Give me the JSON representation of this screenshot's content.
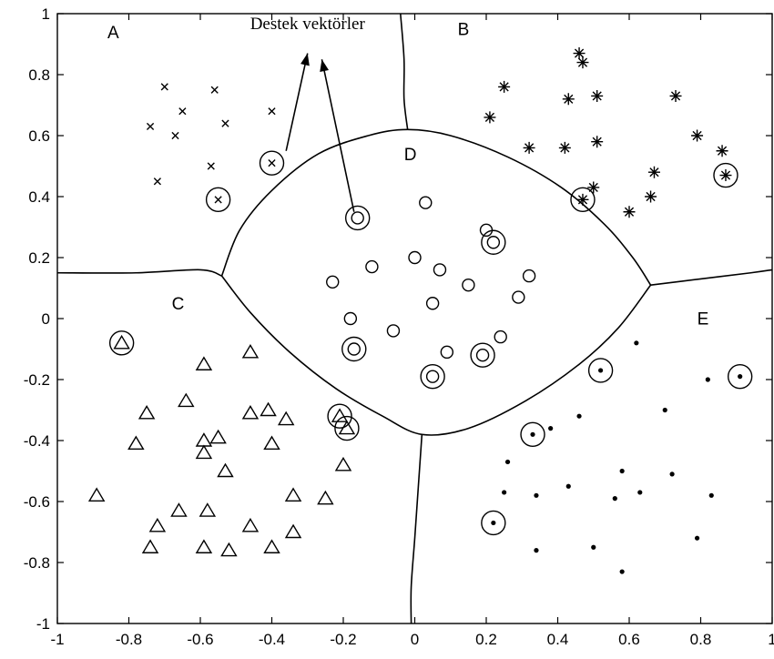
{
  "chart_data": {
    "type": "scatter",
    "xlim": [
      -1,
      1
    ],
    "ylim": [
      -1,
      1
    ],
    "xticks": [
      -1,
      -0.8,
      -0.6,
      -0.4,
      -0.2,
      0,
      0.2,
      0.4,
      0.6,
      0.8,
      1
    ],
    "yticks": [
      -1,
      -0.8,
      -0.6,
      -0.4,
      -0.2,
      0,
      0.2,
      0.4,
      0.6,
      0.8,
      1
    ],
    "xtick_labels": [
      "-1",
      "-0.8",
      "-0.6",
      "-0.4",
      "-0.2",
      "0",
      "0.2",
      "0.4",
      "0.6",
      "0.8",
      "1"
    ],
    "ytick_labels": [
      "-1",
      "-0.8",
      "-0.6",
      "-0.4",
      "-0.2",
      "0",
      "0.2",
      "0.4",
      "0.6",
      "0.8",
      "1"
    ],
    "grid": false,
    "annotation": {
      "text": "Destek vektörler",
      "position": [
        -0.3,
        0.95
      ],
      "arrows": [
        {
          "from": [
            -0.36,
            0.55
          ],
          "to": [
            -0.3,
            0.87
          ]
        },
        {
          "from": [
            -0.17,
            0.35
          ],
          "to": [
            -0.26,
            0.85
          ]
        }
      ]
    },
    "regions": [
      {
        "label": "A",
        "label_position": [
          -0.86,
          0.92
        ]
      },
      {
        "label": "B",
        "label_position": [
          0.12,
          0.93
        ]
      },
      {
        "label": "C",
        "label_position": [
          -0.68,
          0.03
        ]
      },
      {
        "label": "D",
        "label_position": [
          -0.03,
          0.52
        ]
      },
      {
        "label": "E",
        "label_position": [
          0.79,
          -0.02
        ]
      }
    ],
    "series": [
      {
        "marker": "x",
        "points": [
          [
            -0.7,
            0.76
          ],
          [
            -0.56,
            0.75
          ],
          [
            -0.74,
            0.63
          ],
          [
            -0.65,
            0.68
          ],
          [
            -0.67,
            0.6
          ],
          [
            -0.53,
            0.64
          ],
          [
            -0.4,
            0.68
          ],
          [
            -0.72,
            0.45
          ],
          [
            -0.57,
            0.5
          ],
          [
            -0.4,
            0.51
          ],
          [
            -0.55,
            0.39
          ]
        ],
        "support_vectors": [
          [
            -0.4,
            0.51
          ],
          [
            -0.55,
            0.39
          ]
        ]
      },
      {
        "marker": "star",
        "points": [
          [
            0.46,
            0.87
          ],
          [
            0.47,
            0.84
          ],
          [
            0.25,
            0.76
          ],
          [
            0.43,
            0.72
          ],
          [
            0.51,
            0.73
          ],
          [
            0.73,
            0.73
          ],
          [
            0.21,
            0.66
          ],
          [
            0.32,
            0.56
          ],
          [
            0.42,
            0.56
          ],
          [
            0.51,
            0.58
          ],
          [
            0.79,
            0.6
          ],
          [
            0.86,
            0.55
          ],
          [
            0.67,
            0.48
          ],
          [
            0.87,
            0.47
          ],
          [
            0.5,
            0.43
          ],
          [
            0.47,
            0.39
          ],
          [
            0.66,
            0.4
          ],
          [
            0.6,
            0.35
          ]
        ],
        "support_vectors": [
          [
            0.47,
            0.39
          ],
          [
            0.87,
            0.47
          ]
        ]
      },
      {
        "marker": "triangle",
        "points": [
          [
            -0.82,
            -0.08
          ],
          [
            -0.46,
            -0.11
          ],
          [
            -0.59,
            -0.15
          ],
          [
            -0.64,
            -0.27
          ],
          [
            -0.75,
            -0.31
          ],
          [
            -0.46,
            -0.31
          ],
          [
            -0.41,
            -0.3
          ],
          [
            -0.36,
            -0.33
          ],
          [
            -0.21,
            -0.32
          ],
          [
            -0.19,
            -0.36
          ],
          [
            -0.78,
            -0.41
          ],
          [
            -0.59,
            -0.4
          ],
          [
            -0.55,
            -0.39
          ],
          [
            -0.4,
            -0.41
          ],
          [
            -0.59,
            -0.44
          ],
          [
            -0.53,
            -0.5
          ],
          [
            -0.2,
            -0.48
          ],
          [
            -0.89,
            -0.58
          ],
          [
            -0.34,
            -0.58
          ],
          [
            -0.25,
            -0.59
          ],
          [
            -0.58,
            -0.63
          ],
          [
            -0.66,
            -0.63
          ],
          [
            -0.72,
            -0.68
          ],
          [
            -0.46,
            -0.68
          ],
          [
            -0.34,
            -0.7
          ],
          [
            -0.74,
            -0.75
          ],
          [
            -0.59,
            -0.75
          ],
          [
            -0.52,
            -0.76
          ],
          [
            -0.4,
            -0.75
          ]
        ],
        "support_vectors": [
          [
            -0.82,
            -0.08
          ],
          [
            -0.21,
            -0.32
          ],
          [
            -0.19,
            -0.36
          ]
        ]
      },
      {
        "marker": "circle",
        "points": [
          [
            -0.16,
            0.33
          ],
          [
            0.03,
            0.38
          ],
          [
            0.2,
            0.29
          ],
          [
            0.22,
            0.25
          ],
          [
            0.0,
            0.2
          ],
          [
            -0.12,
            0.17
          ],
          [
            0.07,
            0.16
          ],
          [
            0.32,
            0.14
          ],
          [
            -0.23,
            0.12
          ],
          [
            0.15,
            0.11
          ],
          [
            0.29,
            0.07
          ],
          [
            0.05,
            0.05
          ],
          [
            -0.18,
            0.0
          ],
          [
            -0.06,
            -0.04
          ],
          [
            0.24,
            -0.06
          ],
          [
            -0.17,
            -0.1
          ],
          [
            0.09,
            -0.11
          ],
          [
            0.19,
            -0.12
          ],
          [
            0.05,
            -0.19
          ]
        ],
        "support_vectors": [
          [
            -0.16,
            0.33
          ],
          [
            0.22,
            0.25
          ],
          [
            -0.17,
            -0.1
          ],
          [
            0.19,
            -0.12
          ],
          [
            0.05,
            -0.19
          ]
        ]
      },
      {
        "marker": "dot",
        "points": [
          [
            0.62,
            -0.08
          ],
          [
            0.52,
            -0.17
          ],
          [
            0.82,
            -0.2
          ],
          [
            0.91,
            -0.19
          ],
          [
            0.7,
            -0.3
          ],
          [
            0.46,
            -0.32
          ],
          [
            0.38,
            -0.36
          ],
          [
            0.33,
            -0.38
          ],
          [
            0.26,
            -0.47
          ],
          [
            0.72,
            -0.51
          ],
          [
            0.58,
            -0.5
          ],
          [
            0.43,
            -0.55
          ],
          [
            0.25,
            -0.57
          ],
          [
            0.34,
            -0.58
          ],
          [
            0.63,
            -0.57
          ],
          [
            0.56,
            -0.59
          ],
          [
            0.83,
            -0.58
          ],
          [
            0.22,
            -0.67
          ],
          [
            0.79,
            -0.72
          ],
          [
            0.34,
            -0.76
          ],
          [
            0.5,
            -0.75
          ],
          [
            0.58,
            -0.83
          ]
        ],
        "support_vectors": [
          [
            0.52,
            -0.17
          ],
          [
            0.91,
            -0.19
          ],
          [
            0.33,
            -0.38
          ],
          [
            0.22,
            -0.67
          ]
        ]
      }
    ],
    "boundaries": [
      {
        "name": "A-B",
        "points": [
          [
            -0.04,
            1.0
          ],
          [
            -0.03,
            0.85
          ],
          [
            -0.03,
            0.72
          ],
          [
            -0.02,
            0.62
          ]
        ]
      },
      {
        "name": "D-top",
        "points": [
          [
            -0.54,
            0.14
          ],
          [
            -0.49,
            0.29
          ],
          [
            -0.4,
            0.42
          ],
          [
            -0.27,
            0.54
          ],
          [
            -0.13,
            0.6
          ],
          [
            -0.02,
            0.62
          ],
          [
            0.1,
            0.6
          ],
          [
            0.26,
            0.53
          ],
          [
            0.41,
            0.43
          ],
          [
            0.53,
            0.31
          ],
          [
            0.61,
            0.2
          ],
          [
            0.66,
            0.11
          ]
        ]
      },
      {
        "name": "D-bottom",
        "points": [
          [
            -0.54,
            0.14
          ],
          [
            -0.46,
            0.02
          ],
          [
            -0.35,
            -0.11
          ],
          [
            -0.22,
            -0.23
          ],
          [
            -0.09,
            -0.32
          ],
          [
            0.02,
            -0.38
          ],
          [
            0.15,
            -0.36
          ],
          [
            0.31,
            -0.27
          ],
          [
            0.46,
            -0.15
          ],
          [
            0.57,
            -0.03
          ],
          [
            0.66,
            0.11
          ]
        ]
      },
      {
        "name": "A-C",
        "points": [
          [
            -1.0,
            0.15
          ],
          [
            -0.78,
            0.15
          ],
          [
            -0.6,
            0.16
          ],
          [
            -0.54,
            0.14
          ]
        ]
      },
      {
        "name": "B-E",
        "points": [
          [
            0.66,
            0.11
          ],
          [
            0.8,
            0.13
          ],
          [
            0.94,
            0.15
          ],
          [
            1.0,
            0.16
          ]
        ]
      },
      {
        "name": "C-E",
        "points": [
          [
            0.02,
            -0.38
          ],
          [
            0.01,
            -0.55
          ],
          [
            0.0,
            -0.72
          ],
          [
            -0.01,
            -0.88
          ],
          [
            -0.01,
            -1.0
          ]
        ]
      }
    ]
  }
}
